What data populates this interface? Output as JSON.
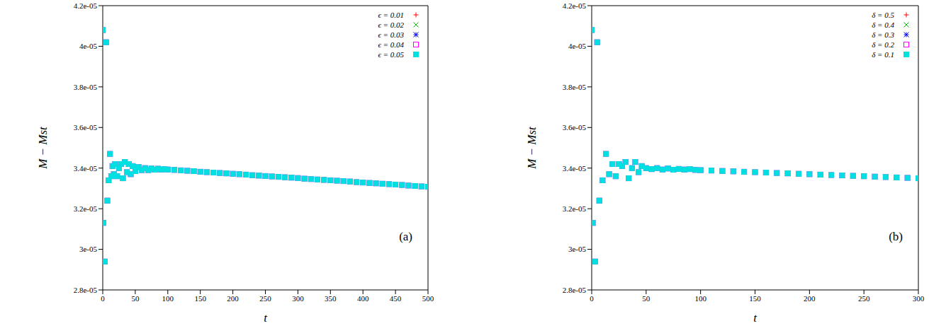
{
  "chart_data": [
    {
      "type": "scatter",
      "x_label": "t",
      "y_label": "M − Mst",
      "annotation": "(a)",
      "legend": "upper right",
      "xlim": [
        0,
        500
      ],
      "xticks": [
        0,
        50,
        100,
        150,
        200,
        250,
        300,
        350,
        400,
        450,
        500
      ],
      "ylim": [
        2.8e-05,
        4.2e-05
      ],
      "yticks": [
        {
          "value": 2.8e-05,
          "label": "2.8e-05"
        },
        {
          "value": 3e-05,
          "label": "3e-05"
        },
        {
          "value": 3.2e-05,
          "label": "3.2e-05"
        },
        {
          "value": 3.4e-05,
          "label": "3.4e-05"
        },
        {
          "value": 3.6e-05,
          "label": "3.6e-05"
        },
        {
          "value": 3.8e-05,
          "label": "3.8e-05"
        },
        {
          "value": 4e-05,
          "label": "4e-05"
        },
        {
          "value": 4.2e-05,
          "label": "4.2e-05"
        }
      ],
      "x": [
        0,
        1,
        3,
        5,
        7,
        9,
        11,
        13,
        15,
        17,
        19,
        22,
        25,
        28,
        31,
        34,
        37,
        40,
        43,
        46,
        50,
        55,
        60,
        65,
        70,
        75,
        80,
        85,
        90,
        95,
        100,
        110,
        120,
        130,
        140,
        150,
        160,
        170,
        180,
        190,
        200,
        210,
        220,
        230,
        240,
        250,
        260,
        270,
        280,
        290,
        300,
        310,
        320,
        330,
        340,
        350,
        360,
        370,
        380,
        390,
        400,
        410,
        420,
        430,
        440,
        450,
        460,
        470,
        480,
        490,
        500
      ],
      "series": [
        {
          "name": "ϵ = 0.01",
          "color": "#ff0000",
          "marker": "plus",
          "values": [
            4.08e-05,
            3.13e-05,
            2.94e-05,
            4.02e-05,
            3.24e-05,
            3.34e-05,
            3.47e-05,
            3.36e-05,
            3.41e-05,
            3.37e-05,
            3.42e-05,
            3.36e-05,
            3.4e-05,
            3.42e-05,
            3.35e-05,
            3.43e-05,
            3.38e-05,
            3.42e-05,
            3.37e-05,
            3.41e-05,
            3.385e-05,
            3.405e-05,
            3.39e-05,
            3.4e-05,
            3.39e-05,
            3.398e-05,
            3.392e-05,
            3.397e-05,
            3.393e-05,
            3.395e-05,
            3.393e-05,
            3.391e-05,
            3.389e-05,
            3.387e-05,
            3.385e-05,
            3.382e-05,
            3.38e-05,
            3.378e-05,
            3.376e-05,
            3.374e-05,
            3.372e-05,
            3.37e-05,
            3.368e-05,
            3.365e-05,
            3.363e-05,
            3.361e-05,
            3.359e-05,
            3.357e-05,
            3.355e-05,
            3.353e-05,
            3.351e-05,
            3.348e-05,
            3.346e-05,
            3.344e-05,
            3.342e-05,
            3.34e-05,
            3.338e-05,
            3.336e-05,
            3.334e-05,
            3.331e-05,
            3.329e-05,
            3.327e-05,
            3.325e-05,
            3.323e-05,
            3.321e-05,
            3.319e-05,
            3.317e-05,
            3.314e-05,
            3.312e-05,
            3.31e-05,
            3.308e-05
          ]
        },
        {
          "name": "ϵ = 0.02",
          "color": "#00c000",
          "marker": "cross",
          "values": [
            4.08e-05,
            3.13e-05,
            2.94e-05,
            4.02e-05,
            3.24e-05,
            3.34e-05,
            3.47e-05,
            3.36e-05,
            3.41e-05,
            3.37e-05,
            3.42e-05,
            3.36e-05,
            3.4e-05,
            3.42e-05,
            3.35e-05,
            3.43e-05,
            3.38e-05,
            3.42e-05,
            3.37e-05,
            3.41e-05,
            3.385e-05,
            3.405e-05,
            3.39e-05,
            3.4e-05,
            3.39e-05,
            3.398e-05,
            3.392e-05,
            3.397e-05,
            3.393e-05,
            3.395e-05,
            3.393e-05,
            3.391e-05,
            3.389e-05,
            3.387e-05,
            3.385e-05,
            3.382e-05,
            3.38e-05,
            3.378e-05,
            3.376e-05,
            3.374e-05,
            3.372e-05,
            3.37e-05,
            3.368e-05,
            3.365e-05,
            3.363e-05,
            3.361e-05,
            3.359e-05,
            3.357e-05,
            3.355e-05,
            3.353e-05,
            3.351e-05,
            3.348e-05,
            3.346e-05,
            3.344e-05,
            3.342e-05,
            3.34e-05,
            3.338e-05,
            3.336e-05,
            3.334e-05,
            3.331e-05,
            3.329e-05,
            3.327e-05,
            3.325e-05,
            3.323e-05,
            3.321e-05,
            3.319e-05,
            3.317e-05,
            3.314e-05,
            3.312e-05,
            3.31e-05,
            3.308e-05
          ]
        },
        {
          "name": "ϵ = 0.03",
          "color": "#0000ff",
          "marker": "star",
          "values": [
            4.08e-05,
            3.13e-05,
            2.94e-05,
            4.02e-05,
            3.24e-05,
            3.34e-05,
            3.47e-05,
            3.36e-05,
            3.41e-05,
            3.37e-05,
            3.42e-05,
            3.36e-05,
            3.4e-05,
            3.42e-05,
            3.35e-05,
            3.43e-05,
            3.38e-05,
            3.42e-05,
            3.37e-05,
            3.41e-05,
            3.385e-05,
            3.405e-05,
            3.39e-05,
            3.4e-05,
            3.39e-05,
            3.398e-05,
            3.392e-05,
            3.397e-05,
            3.393e-05,
            3.395e-05,
            3.393e-05,
            3.391e-05,
            3.389e-05,
            3.387e-05,
            3.385e-05,
            3.382e-05,
            3.38e-05,
            3.378e-05,
            3.376e-05,
            3.374e-05,
            3.372e-05,
            3.37e-05,
            3.368e-05,
            3.365e-05,
            3.363e-05,
            3.361e-05,
            3.359e-05,
            3.357e-05,
            3.355e-05,
            3.353e-05,
            3.351e-05,
            3.348e-05,
            3.346e-05,
            3.344e-05,
            3.342e-05,
            3.34e-05,
            3.338e-05,
            3.336e-05,
            3.334e-05,
            3.331e-05,
            3.329e-05,
            3.327e-05,
            3.325e-05,
            3.323e-05,
            3.321e-05,
            3.319e-05,
            3.317e-05,
            3.314e-05,
            3.312e-05,
            3.31e-05,
            3.308e-05
          ]
        },
        {
          "name": "ϵ = 0.04",
          "color": "#ff00ff",
          "marker": "square",
          "values": [
            4.08e-05,
            3.13e-05,
            2.94e-05,
            4.02e-05,
            3.24e-05,
            3.34e-05,
            3.47e-05,
            3.36e-05,
            3.41e-05,
            3.37e-05,
            3.42e-05,
            3.36e-05,
            3.4e-05,
            3.42e-05,
            3.35e-05,
            3.43e-05,
            3.38e-05,
            3.42e-05,
            3.37e-05,
            3.41e-05,
            3.385e-05,
            3.405e-05,
            3.39e-05,
            3.4e-05,
            3.39e-05,
            3.398e-05,
            3.392e-05,
            3.397e-05,
            3.393e-05,
            3.395e-05,
            3.393e-05,
            3.391e-05,
            3.389e-05,
            3.387e-05,
            3.385e-05,
            3.382e-05,
            3.38e-05,
            3.378e-05,
            3.376e-05,
            3.374e-05,
            3.372e-05,
            3.37e-05,
            3.368e-05,
            3.365e-05,
            3.363e-05,
            3.361e-05,
            3.359e-05,
            3.357e-05,
            3.355e-05,
            3.353e-05,
            3.351e-05,
            3.348e-05,
            3.346e-05,
            3.344e-05,
            3.342e-05,
            3.34e-05,
            3.338e-05,
            3.336e-05,
            3.334e-05,
            3.331e-05,
            3.329e-05,
            3.327e-05,
            3.325e-05,
            3.323e-05,
            3.321e-05,
            3.319e-05,
            3.317e-05,
            3.314e-05,
            3.312e-05,
            3.31e-05,
            3.308e-05
          ]
        },
        {
          "name": "ϵ = 0.05",
          "color": "#00e0e0",
          "marker": "filled_square",
          "values": [
            4.08e-05,
            3.13e-05,
            2.94e-05,
            4.02e-05,
            3.24e-05,
            3.34e-05,
            3.47e-05,
            3.36e-05,
            3.41e-05,
            3.37e-05,
            3.42e-05,
            3.36e-05,
            3.4e-05,
            3.42e-05,
            3.35e-05,
            3.43e-05,
            3.38e-05,
            3.42e-05,
            3.37e-05,
            3.41e-05,
            3.385e-05,
            3.405e-05,
            3.39e-05,
            3.4e-05,
            3.39e-05,
            3.398e-05,
            3.392e-05,
            3.397e-05,
            3.393e-05,
            3.395e-05,
            3.393e-05,
            3.391e-05,
            3.389e-05,
            3.387e-05,
            3.385e-05,
            3.382e-05,
            3.38e-05,
            3.378e-05,
            3.376e-05,
            3.374e-05,
            3.372e-05,
            3.37e-05,
            3.368e-05,
            3.365e-05,
            3.363e-05,
            3.361e-05,
            3.359e-05,
            3.357e-05,
            3.355e-05,
            3.353e-05,
            3.351e-05,
            3.348e-05,
            3.346e-05,
            3.344e-05,
            3.342e-05,
            3.34e-05,
            3.338e-05,
            3.336e-05,
            3.334e-05,
            3.331e-05,
            3.329e-05,
            3.327e-05,
            3.325e-05,
            3.323e-05,
            3.321e-05,
            3.319e-05,
            3.317e-05,
            3.314e-05,
            3.312e-05,
            3.31e-05,
            3.308e-05
          ]
        }
      ]
    },
    {
      "type": "scatter",
      "x_label": "t",
      "y_label": "M − Mst",
      "annotation": "(b)",
      "legend": "upper right",
      "xlim": [
        0,
        300
      ],
      "xticks": [
        0,
        50,
        100,
        150,
        200,
        250,
        300
      ],
      "ylim": [
        2.8e-05,
        4.2e-05
      ],
      "yticks": [
        {
          "value": 2.8e-05,
          "label": "2.8e-05"
        },
        {
          "value": 3e-05,
          "label": "3e-05"
        },
        {
          "value": 3.2e-05,
          "label": "3.2e-05"
        },
        {
          "value": 3.4e-05,
          "label": "3.4e-05"
        },
        {
          "value": 3.6e-05,
          "label": "3.6e-05"
        },
        {
          "value": 3.8e-05,
          "label": "3.8e-05"
        },
        {
          "value": 4e-05,
          "label": "4e-05"
        },
        {
          "value": 4.2e-05,
          "label": "4.2e-05"
        }
      ],
      "x": [
        0,
        1,
        3,
        5,
        7,
        10,
        13,
        16,
        19,
        22,
        25,
        28,
        31,
        34,
        37,
        40,
        43,
        46,
        50,
        55,
        60,
        65,
        70,
        75,
        80,
        85,
        90,
        95,
        100,
        110,
        120,
        130,
        140,
        150,
        160,
        170,
        180,
        190,
        200,
        210,
        220,
        230,
        240,
        250,
        260,
        270,
        280,
        290,
        300
      ],
      "series": [
        {
          "name": "δ = 0.5",
          "color": "#ff0000",
          "marker": "plus",
          "values": [
            4.08e-05,
            3.13e-05,
            2.94e-05,
            4.02e-05,
            3.24e-05,
            3.34e-05,
            3.47e-05,
            3.37e-05,
            3.42e-05,
            3.36e-05,
            3.42e-05,
            3.41e-05,
            3.43e-05,
            3.35e-05,
            3.4e-05,
            3.43e-05,
            3.38e-05,
            3.41e-05,
            3.4e-05,
            3.395e-05,
            3.4e-05,
            3.393e-05,
            3.398e-05,
            3.392e-05,
            3.396e-05,
            3.393e-05,
            3.395e-05,
            3.391e-05,
            3.39e-05,
            3.388e-05,
            3.386e-05,
            3.384e-05,
            3.382e-05,
            3.38e-05,
            3.378e-05,
            3.376e-05,
            3.374e-05,
            3.372e-05,
            3.37e-05,
            3.368e-05,
            3.366e-05,
            3.364e-05,
            3.362e-05,
            3.36e-05,
            3.358e-05,
            3.356e-05,
            3.354e-05,
            3.352e-05,
            3.35e-05
          ]
        },
        {
          "name": "δ = 0.4",
          "color": "#00c000",
          "marker": "cross",
          "values": [
            4.08e-05,
            3.13e-05,
            2.94e-05,
            4.02e-05,
            3.24e-05,
            3.34e-05,
            3.47e-05,
            3.37e-05,
            3.42e-05,
            3.36e-05,
            3.42e-05,
            3.41e-05,
            3.43e-05,
            3.35e-05,
            3.4e-05,
            3.43e-05,
            3.38e-05,
            3.41e-05,
            3.4e-05,
            3.395e-05,
            3.4e-05,
            3.393e-05,
            3.398e-05,
            3.392e-05,
            3.396e-05,
            3.393e-05,
            3.395e-05,
            3.391e-05,
            3.39e-05,
            3.388e-05,
            3.386e-05,
            3.384e-05,
            3.382e-05,
            3.38e-05,
            3.378e-05,
            3.376e-05,
            3.374e-05,
            3.372e-05,
            3.37e-05,
            3.368e-05,
            3.366e-05,
            3.364e-05,
            3.362e-05,
            3.36e-05,
            3.358e-05,
            3.356e-05,
            3.354e-05,
            3.352e-05,
            3.35e-05
          ]
        },
        {
          "name": "δ = 0.3",
          "color": "#0000ff",
          "marker": "star",
          "values": [
            4.08e-05,
            3.13e-05,
            2.94e-05,
            4.02e-05,
            3.24e-05,
            3.34e-05,
            3.47e-05,
            3.37e-05,
            3.42e-05,
            3.36e-05,
            3.42e-05,
            3.41e-05,
            3.43e-05,
            3.35e-05,
            3.4e-05,
            3.43e-05,
            3.38e-05,
            3.41e-05,
            3.4e-05,
            3.395e-05,
            3.4e-05,
            3.393e-05,
            3.398e-05,
            3.392e-05,
            3.396e-05,
            3.393e-05,
            3.395e-05,
            3.391e-05,
            3.39e-05,
            3.388e-05,
            3.386e-05,
            3.384e-05,
            3.382e-05,
            3.38e-05,
            3.378e-05,
            3.376e-05,
            3.374e-05,
            3.372e-05,
            3.37e-05,
            3.368e-05,
            3.366e-05,
            3.364e-05,
            3.362e-05,
            3.36e-05,
            3.358e-05,
            3.356e-05,
            3.354e-05,
            3.352e-05,
            3.35e-05
          ]
        },
        {
          "name": "δ = 0.2",
          "color": "#ff00ff",
          "marker": "square",
          "values": [
            4.08e-05,
            3.13e-05,
            2.94e-05,
            4.02e-05,
            3.24e-05,
            3.34e-05,
            3.47e-05,
            3.37e-05,
            3.42e-05,
            3.36e-05,
            3.42e-05,
            3.41e-05,
            3.43e-05,
            3.35e-05,
            3.4e-05,
            3.43e-05,
            3.38e-05,
            3.41e-05,
            3.4e-05,
            3.395e-05,
            3.4e-05,
            3.393e-05,
            3.398e-05,
            3.392e-05,
            3.396e-05,
            3.393e-05,
            3.395e-05,
            3.391e-05,
            3.39e-05,
            3.388e-05,
            3.386e-05,
            3.384e-05,
            3.382e-05,
            3.38e-05,
            3.378e-05,
            3.376e-05,
            3.374e-05,
            3.372e-05,
            3.37e-05,
            3.368e-05,
            3.366e-05,
            3.364e-05,
            3.362e-05,
            3.36e-05,
            3.358e-05,
            3.356e-05,
            3.354e-05,
            3.352e-05,
            3.35e-05
          ]
        },
        {
          "name": "δ = 0.1",
          "color": "#00e0e0",
          "marker": "filled_square",
          "values": [
            4.08e-05,
            3.13e-05,
            2.94e-05,
            4.02e-05,
            3.24e-05,
            3.34e-05,
            3.47e-05,
            3.37e-05,
            3.42e-05,
            3.36e-05,
            3.42e-05,
            3.41e-05,
            3.43e-05,
            3.35e-05,
            3.4e-05,
            3.43e-05,
            3.38e-05,
            3.41e-05,
            3.4e-05,
            3.395e-05,
            3.4e-05,
            3.393e-05,
            3.398e-05,
            3.392e-05,
            3.396e-05,
            3.393e-05,
            3.395e-05,
            3.391e-05,
            3.39e-05,
            3.388e-05,
            3.386e-05,
            3.384e-05,
            3.382e-05,
            3.38e-05,
            3.378e-05,
            3.376e-05,
            3.374e-05,
            3.372e-05,
            3.37e-05,
            3.368e-05,
            3.366e-05,
            3.364e-05,
            3.362e-05,
            3.36e-05,
            3.358e-05,
            3.356e-05,
            3.354e-05,
            3.352e-05,
            3.35e-05
          ]
        }
      ]
    }
  ]
}
